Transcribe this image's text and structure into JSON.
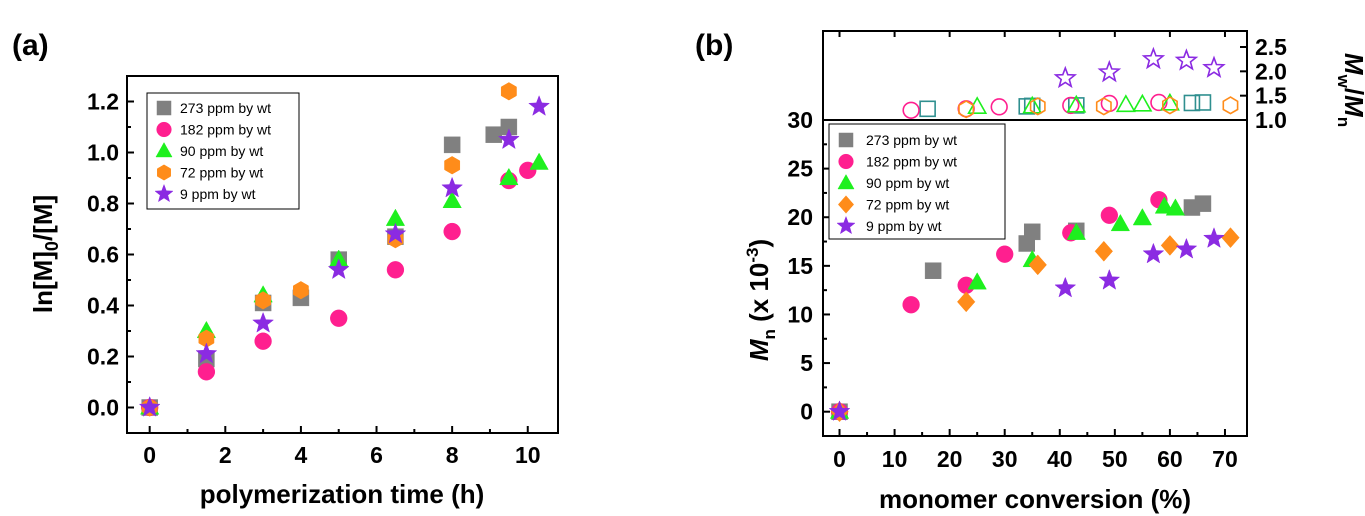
{
  "chart_data": [
    {
      "panel": "(a)",
      "type": "scatter",
      "xlabel": "polymerization time (h)",
      "ylabel": "ln[M]0/[M]",
      "xlim": [
        -0.6,
        10.8
      ],
      "ylim": [
        -0.1,
        1.3
      ],
      "xticks": [
        0,
        2,
        4,
        6,
        8,
        10
      ],
      "yticks": [
        0.0,
        0.2,
        0.4,
        0.6,
        0.8,
        1.0,
        1.2
      ],
      "ytick_labels": [
        "0.0",
        "0.2",
        "0.4",
        "0.6",
        "0.8",
        "1.0",
        "1.2"
      ],
      "legend_position": "top-left",
      "series": [
        {
          "name": "273 ppm by wt",
          "marker": "square",
          "color": "#808080",
          "points": [
            [
              0,
              0.0
            ],
            [
              1.5,
              0.19
            ],
            [
              3,
              0.41
            ],
            [
              4,
              0.43
            ],
            [
              5,
              0.58
            ],
            [
              6.5,
              0.67
            ],
            [
              8,
              1.03
            ],
            [
              9.1,
              1.07
            ],
            [
              9.5,
              1.1
            ]
          ]
        },
        {
          "name": "182 ppm by wt",
          "marker": "circle",
          "color": "#ff1f8f",
          "points": [
            [
              0,
              0.0
            ],
            [
              1.5,
              0.14
            ],
            [
              3,
              0.26
            ],
            [
              5,
              0.35
            ],
            [
              6.5,
              0.54
            ],
            [
              8,
              0.69
            ],
            [
              9.5,
              0.89
            ],
            [
              10,
              0.93
            ]
          ]
        },
        {
          "name": "90 ppm by wt",
          "marker": "triangle",
          "color": "#1ef01e",
          "points": [
            [
              0,
              0.0
            ],
            [
              1.5,
              0.3
            ],
            [
              3,
              0.44
            ],
            [
              5,
              0.58
            ],
            [
              6.5,
              0.74
            ],
            [
              8,
              0.81
            ],
            [
              9.5,
              0.9
            ],
            [
              10.3,
              0.96
            ]
          ]
        },
        {
          "name": "72 ppm by wt",
          "marker": "hexagon",
          "color": "#ff8c1a",
          "points": [
            [
              0,
              0.0
            ],
            [
              1.5,
              0.27
            ],
            [
              3,
              0.42
            ],
            [
              4,
              0.46
            ],
            [
              6.5,
              0.66
            ],
            [
              8,
              0.95
            ],
            [
              9.5,
              1.24
            ]
          ]
        },
        {
          "name": "9 ppm by wt",
          "marker": "star",
          "color": "#8b2be2",
          "points": [
            [
              0,
              0.0
            ],
            [
              1.5,
              0.21
            ],
            [
              3,
              0.33
            ],
            [
              5,
              0.54
            ],
            [
              6.5,
              0.68
            ],
            [
              8,
              0.86
            ],
            [
              9.5,
              1.05
            ],
            [
              10.3,
              1.18
            ]
          ]
        }
      ]
    },
    {
      "panel": "(b)",
      "type": "scatter",
      "xlabel": "monomer conversion (%)",
      "ylabel": "Mn (x 10-3)",
      "right_ylabel": "Mw/Mn",
      "xlim": [
        -3,
        74
      ],
      "ylim": [
        -2.5,
        30
      ],
      "right_ylim": [
        1.0,
        2.5
      ],
      "xticks": [
        0,
        10,
        20,
        30,
        40,
        50,
        60,
        70
      ],
      "yticks": [
        0,
        5,
        10,
        15,
        20,
        25,
        30
      ],
      "right_yticks": [
        1.0,
        1.5,
        2.0,
        2.5
      ],
      "right_ytick_labels": [
        "1.0",
        "1.5",
        "2.0",
        "2.5"
      ],
      "legend_position": "top-left",
      "series": [
        {
          "name": "273 ppm by wt",
          "marker": "square",
          "color": "#808080",
          "points": [
            [
              0,
              0
            ],
            [
              17,
              14.5
            ],
            [
              34,
              17.3
            ],
            [
              35,
              18.5
            ],
            [
              43,
              18.6
            ],
            [
              64,
              21.0
            ],
            [
              66,
              21.4
            ]
          ]
        },
        {
          "name": "182 ppm by wt",
          "marker": "circle",
          "color": "#ff1f8f",
          "points": [
            [
              0,
              0
            ],
            [
              13,
              11.0
            ],
            [
              23,
              13.0
            ],
            [
              30,
              16.2
            ],
            [
              42,
              18.4
            ],
            [
              49,
              20.2
            ],
            [
              58,
              21.8
            ]
          ]
        },
        {
          "name": "90 ppm by wt",
          "marker": "triangle",
          "color": "#1ef01e",
          "points": [
            [
              0,
              0
            ],
            [
              25,
              13.3
            ],
            [
              35,
              15.6
            ],
            [
              43,
              18.4
            ],
            [
              51,
              19.3
            ],
            [
              55,
              19.9
            ],
            [
              59,
              21.1
            ],
            [
              61,
              20.9
            ]
          ]
        },
        {
          "name": "72 ppm by wt",
          "marker": "diamond",
          "color": "#ff8c1a",
          "points": [
            [
              0,
              0
            ],
            [
              23,
              11.3
            ],
            [
              36,
              15.1
            ],
            [
              48,
              16.5
            ],
            [
              60,
              17.1
            ],
            [
              71,
              17.9
            ]
          ]
        },
        {
          "name": "9 ppm by wt",
          "marker": "star",
          "color": "#8b2be2",
          "points": [
            [
              0,
              0
            ],
            [
              41,
              12.7
            ],
            [
              49,
              13.5
            ],
            [
              57,
              16.2
            ],
            [
              63,
              16.7
            ],
            [
              68,
              17.8
            ]
          ]
        }
      ],
      "dispersity_series": [
        {
          "name": "273 ppm by wt",
          "marker": "open-square",
          "color": "#2f8f8f",
          "points": [
            [
              16,
              1.23
            ],
            [
              34,
              1.28
            ],
            [
              35,
              1.29
            ],
            [
              43,
              1.3
            ],
            [
              64,
              1.35
            ],
            [
              66,
              1.36
            ]
          ]
        },
        {
          "name": "182 ppm by wt",
          "marker": "open-circle",
          "color": "#ff1f8f",
          "points": [
            [
              13,
              1.2
            ],
            [
              23,
              1.23
            ],
            [
              29,
              1.27
            ],
            [
              42,
              1.3
            ],
            [
              49,
              1.34
            ],
            [
              58,
              1.36
            ]
          ]
        },
        {
          "name": "90 ppm by wt",
          "marker": "open-triangle",
          "color": "#1ef01e",
          "points": [
            [
              25,
              1.27
            ],
            [
              35,
              1.28
            ],
            [
              43,
              1.3
            ],
            [
              52,
              1.31
            ],
            [
              55,
              1.32
            ],
            [
              60,
              1.34
            ]
          ]
        },
        {
          "name": "72 ppm by wt",
          "marker": "open-hexagon",
          "color": "#ff8c1a",
          "points": [
            [
              23,
              1.22
            ],
            [
              36,
              1.28
            ],
            [
              48,
              1.28
            ],
            [
              60,
              1.3
            ],
            [
              71,
              1.3
            ]
          ]
        },
        {
          "name": "9 ppm by wt",
          "marker": "open-star",
          "color": "#8b2be2",
          "points": [
            [
              41,
              1.86
            ],
            [
              49,
              1.98
            ],
            [
              57,
              2.25
            ],
            [
              63,
              2.22
            ],
            [
              68,
              2.07
            ]
          ]
        }
      ]
    }
  ]
}
